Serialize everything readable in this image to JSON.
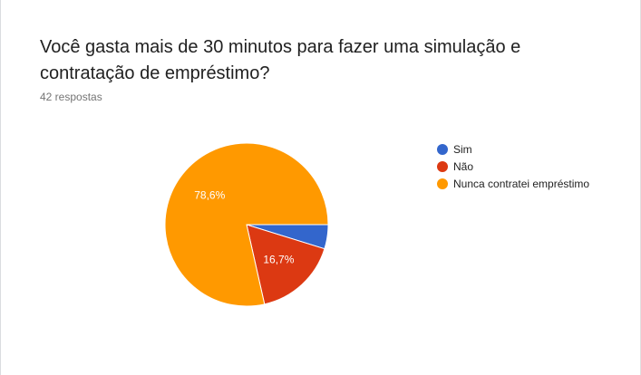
{
  "question": {
    "title": "Você gasta mais de 30 minutos para fazer uma simulação e contratação de empréstimo?",
    "responses": "42 respostas"
  },
  "chart_data": {
    "type": "pie",
    "title": "Você gasta mais de 30 minutos para fazer uma simulação e contratação de empréstimo?",
    "categories": [
      "Sim",
      "Não",
      "Nunca contratei empréstimo"
    ],
    "values": [
      4.8,
      16.7,
      78.6
    ],
    "labels": [
      "",
      "16,7%",
      "78,6%"
    ],
    "colors": [
      "#3366cc",
      "#dc3912",
      "#ff9900"
    ],
    "legend_position": "right"
  }
}
